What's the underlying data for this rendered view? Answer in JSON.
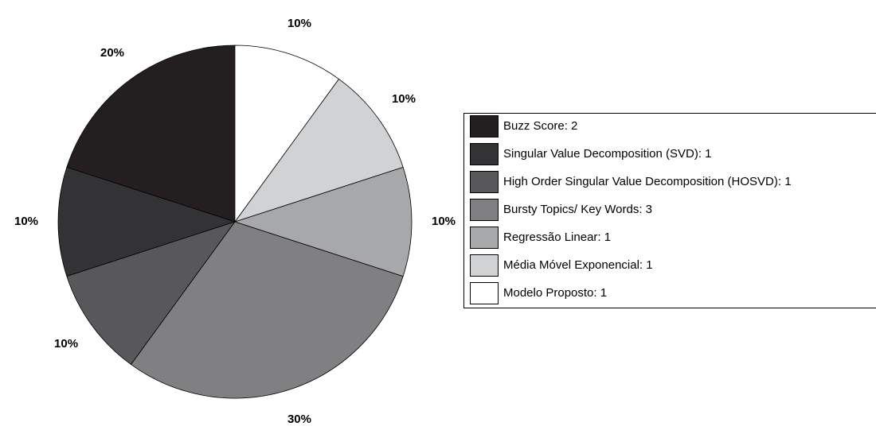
{
  "chart_data": {
    "type": "pie",
    "categories": [
      "Buzz Score: 2",
      "Singular Value Decomposition (SVD): 1",
      "High Order Singular Value Decomposition (HOSVD): 1",
      "Bursty Topics/ Key Words: 3",
      "Regressão Linear: 1",
      "Média Móvel Exponencial: 1",
      "Modelo Proposto: 1"
    ],
    "values": [
      20,
      10,
      10,
      30,
      10,
      10,
      10
    ],
    "value_labels": [
      "20%",
      "10%",
      "10%",
      "30%",
      "10%",
      "10%",
      "10%"
    ],
    "colors": [
      "#231f20",
      "#333335",
      "#58585a",
      "#808083",
      "#a7a8aa",
      "#d1d2d4",
      "#ffffff"
    ]
  }
}
